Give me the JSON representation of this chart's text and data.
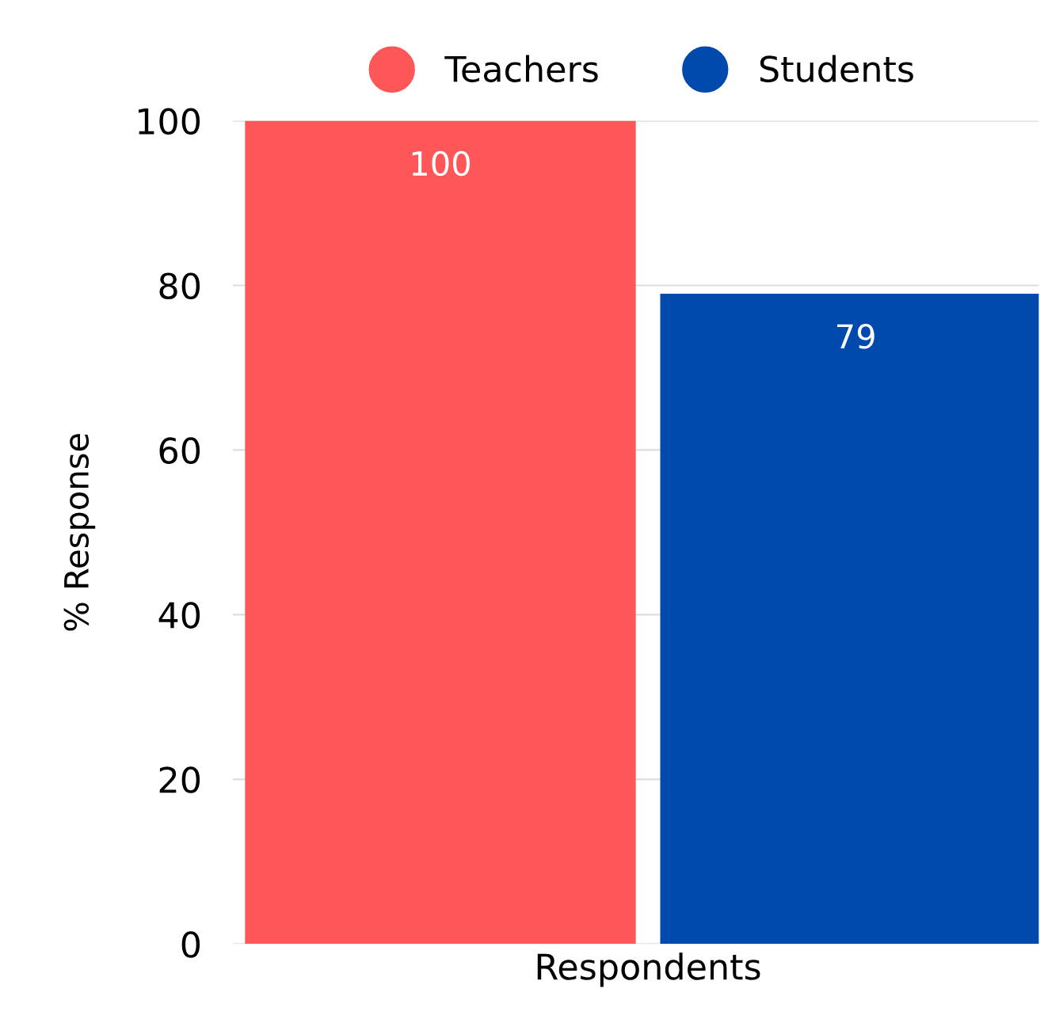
{
  "chart_data": {
    "type": "bar",
    "categories": [
      "Respondents"
    ],
    "ylabel": "% Response",
    "series": [
      {
        "name": "Teachers",
        "color": "#ff5757",
        "values": [
          100
        ]
      },
      {
        "name": "Students",
        "color": "#004aad",
        "values": [
          79
        ]
      }
    ],
    "ylim": [
      0,
      100
    ],
    "yticks": [
      0,
      20,
      40,
      60,
      80,
      100
    ],
    "grid": "y",
    "legend": "top",
    "data_labels": true
  }
}
